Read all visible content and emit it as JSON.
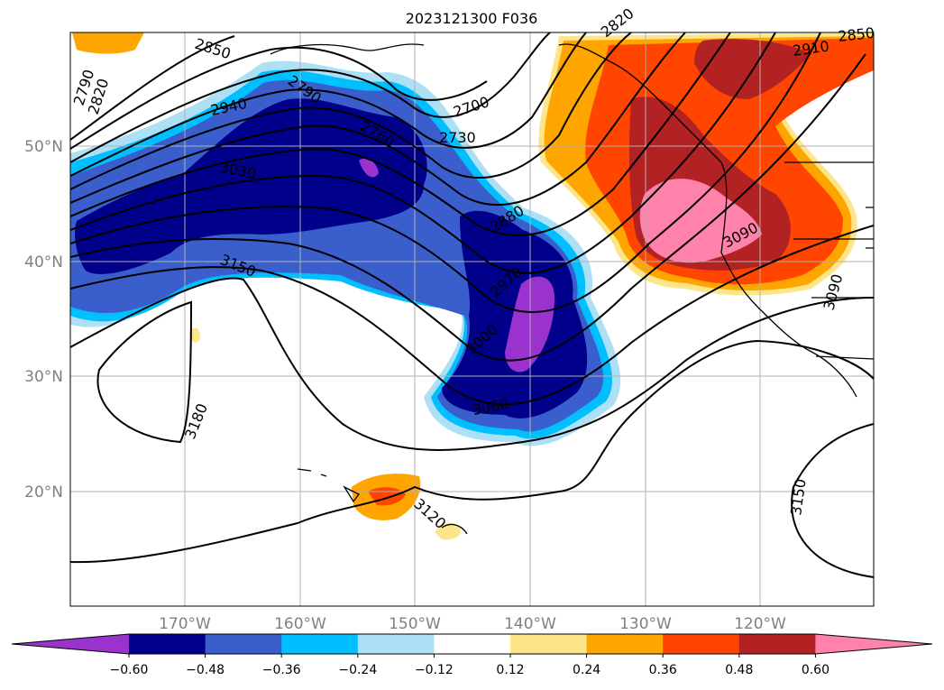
{
  "title": "2023121300 F036",
  "lat_labels": [
    "50°N",
    "40°N",
    "30°N",
    "20°N"
  ],
  "lon_labels": [
    "170°W",
    "160°W",
    "150°W",
    "140°W",
    "130°W",
    "120°W"
  ],
  "contour_labels": [
    "2850",
    "2790",
    "2820",
    "2940",
    "3030",
    "3150",
    "3180",
    "2760",
    "2790",
    "2700",
    "2730",
    "2880",
    "2970",
    "3000",
    "3060",
    "3120",
    "2820",
    "2910",
    "2850",
    "3090",
    "3090",
    "3150"
  ],
  "colorbar": {
    "tick_labels": [
      "−0.60",
      "−0.48",
      "−0.36",
      "−0.24",
      "−0.12",
      "0.12",
      "0.24",
      "0.36",
      "0.48",
      "0.60"
    ],
    "colors": [
      "#9a32cd",
      "#00008b",
      "#3a5fcd",
      "#00bfff",
      "#aee0f5",
      "#ffffff",
      "#fde68a",
      "#ffa500",
      "#ff4500",
      "#b22222",
      "#ff82ab"
    ]
  },
  "colors": {
    "land_line": "#000000",
    "grid": "#b0b0b0",
    "contour": "#000000"
  }
}
